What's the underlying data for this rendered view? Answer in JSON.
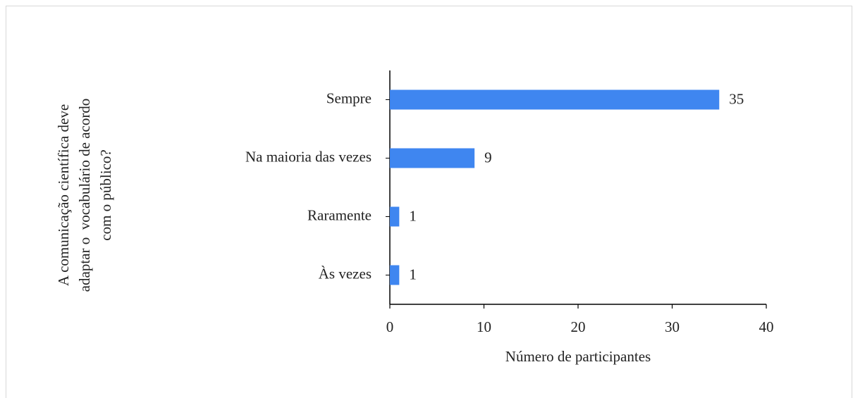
{
  "chart_data": {
    "type": "barh",
    "ylabel": [
      "A comunicação científica deve",
      "adaptar o  vocabulário de acordo",
      "com o público?"
    ],
    "xlabel": "Número de participantes",
    "categories": [
      "Sempre",
      "Na maioria das vezes",
      "Raramente",
      "Às vezes"
    ],
    "values": [
      35,
      9,
      1,
      1
    ],
    "color": "#3f86f0",
    "xlim": [
      0,
      40
    ],
    "xticks": [
      0,
      10,
      20,
      30,
      40
    ],
    "grid": false
  }
}
